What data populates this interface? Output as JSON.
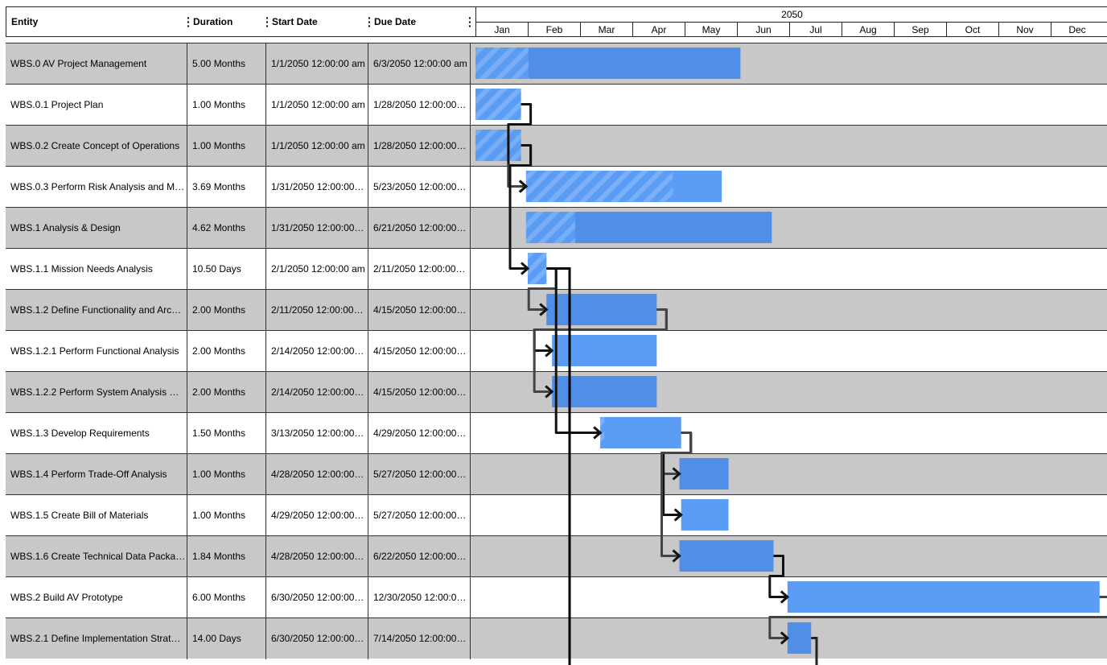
{
  "columns": {
    "entity": "Entity",
    "duration": "Duration",
    "start": "Start Date",
    "due": "Due Date"
  },
  "timeline": {
    "year": "2050",
    "months": [
      "Jan",
      "Feb",
      "Mar",
      "Apr",
      "May",
      "Jun",
      "Jul",
      "Aug",
      "Sep",
      "Oct",
      "Nov",
      "Dec"
    ]
  },
  "colors": {
    "bar": "#4f8fe8",
    "bar_light": "#5b9cf5",
    "row_alt": "#c8c8c8",
    "link": "#111111"
  },
  "rows": [
    {
      "entity": "WBS.0 AV Project Management",
      "duration": "5.00 Months",
      "start": "1/1/2050 12:00:00 am",
      "due": "6/3/2050 12:00:00 am",
      "progress": 20
    },
    {
      "entity": "WBS.0.1 Project Plan",
      "duration": "1.00 Months",
      "start": "1/1/2050 12:00:00 am",
      "due": "1/28/2050 12:00:00…",
      "progress": 100
    },
    {
      "entity": "WBS.0.2 Create Concept of Operations",
      "duration": "1.00 Months",
      "start": "1/1/2050 12:00:00 am",
      "due": "1/28/2050 12:00:00…",
      "progress": 100
    },
    {
      "entity": "WBS.0.3 Perform Risk Analysis and M…",
      "duration": "3.69 Months",
      "start": "1/31/2050 12:00:00…",
      "due": "5/23/2050 12:00:00…",
      "progress": 75
    },
    {
      "entity": "WBS.1 Analysis & Design",
      "duration": "4.62 Months",
      "start": "1/31/2050 12:00:00…",
      "due": "6/21/2050 12:00:00…",
      "progress": 20
    },
    {
      "entity": "WBS.1.1 Mission Needs Analysis",
      "duration": "10.50 Days",
      "start": "2/1/2050 12:00:00 am",
      "due": "2/11/2050 12:00:00…",
      "progress": 100
    },
    {
      "entity": "WBS.1.2 Define Functionality and Arc…",
      "duration": "2.00 Months",
      "start": "2/11/2050 12:00:00…",
      "due": "4/15/2050 12:00:00…",
      "progress": 0
    },
    {
      "entity": "WBS.1.2.1 Perform Functional Analysis",
      "duration": "2.00 Months",
      "start": "2/14/2050 12:00:00…",
      "due": "4/15/2050 12:00:00…",
      "progress": 0
    },
    {
      "entity": "WBS.1.2.2 Perform System Analysis …",
      "duration": "2.00 Months",
      "start": "2/14/2050 12:00:00…",
      "due": "4/15/2050 12:00:00…",
      "progress": 0
    },
    {
      "entity": "WBS.1.3 Develop Requirements",
      "duration": "1.50 Months",
      "start": "3/13/2050 12:00:00…",
      "due": "4/29/2050 12:00:00…",
      "progress": 5
    },
    {
      "entity": "WBS.1.4 Perform Trade-Off Analysis",
      "duration": "1.00 Months",
      "start": "4/28/2050 12:00:00…",
      "due": "5/27/2050 12:00:00…",
      "progress": 0
    },
    {
      "entity": "WBS.1.5 Create Bill of Materials",
      "duration": "1.00 Months",
      "start": "4/29/2050 12:00:00…",
      "due": "5/27/2050 12:00:00…",
      "progress": 0
    },
    {
      "entity": "WBS.1.6 Create Technical Data Packa…",
      "duration": "1.84 Months",
      "start": "4/28/2050 12:00:00…",
      "due": "6/22/2050 12:00:00…",
      "progress": 0
    },
    {
      "entity": "WBS.2 Build AV Prototype",
      "duration": "6.00 Months",
      "start": "6/30/2050 12:00:00…",
      "due": "12/30/2050 12:00:0…",
      "progress": 0
    },
    {
      "entity": "WBS.2.1 Define Implementation Strat…",
      "duration": "14.00 Days",
      "start": "6/30/2050 12:00:00…",
      "due": "7/14/2050 12:00:00…",
      "progress": 0
    }
  ],
  "dependencies": [
    [
      1,
      3
    ],
    [
      2,
      3
    ],
    [
      2,
      5
    ],
    [
      5,
      6
    ],
    [
      6,
      7
    ],
    [
      6,
      8
    ],
    [
      5,
      9
    ],
    [
      9,
      10
    ],
    [
      9,
      11
    ],
    [
      9,
      12
    ],
    [
      12,
      13
    ],
    [
      13,
      14
    ]
  ]
}
